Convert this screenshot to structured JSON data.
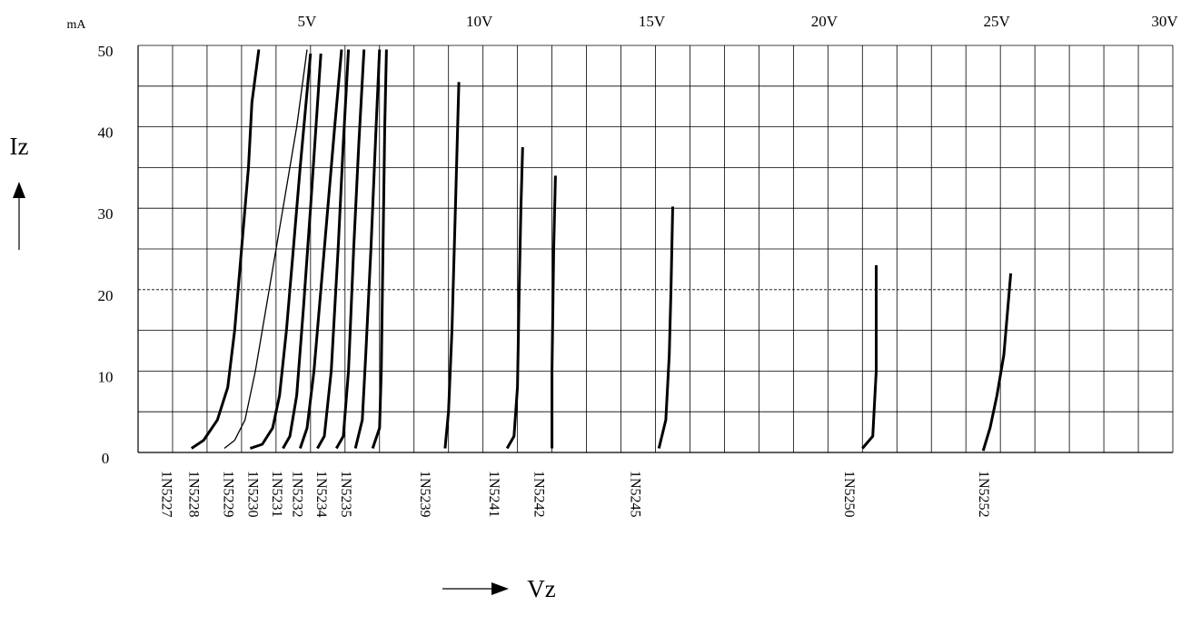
{
  "chart_data": {
    "type": "line",
    "title": "",
    "xlabel": "Vz",
    "ylabel": "Iz",
    "y_unit": "mA",
    "xlim": [
      0,
      30
    ],
    "ylim": [
      0,
      50
    ],
    "grid": true,
    "x_tick_labels": [
      "5V",
      "10V",
      "15V",
      "20V",
      "25V",
      "30V"
    ],
    "x_tick_values": [
      5,
      10,
      15,
      20,
      25,
      30
    ],
    "y_tick_labels": [
      "0",
      "10",
      "20",
      "30",
      "40",
      "50"
    ],
    "y_tick_values": [
      0,
      10,
      20,
      30,
      40,
      50
    ],
    "reference_line_y": 20,
    "part_labels": [
      {
        "text": "1N5227",
        "x": 0.8
      },
      {
        "text": "1N5228",
        "x": 1.6
      },
      {
        "text": "1N5229",
        "x": 2.6
      },
      {
        "text": "1N5230",
        "x": 3.3
      },
      {
        "text": "1N5231",
        "x": 4.0
      },
      {
        "text": "1N5232",
        "x": 4.6
      },
      {
        "text": "1N5234",
        "x": 5.3
      },
      {
        "text": "1N5235",
        "x": 6.0
      },
      {
        "text": "1N5239",
        "x": 8.3
      },
      {
        "text": "1N5241",
        "x": 10.3
      },
      {
        "text": "1N5242",
        "x": 11.6
      },
      {
        "text": "1N5245",
        "x": 14.4
      },
      {
        "text": "1N5250",
        "x": 20.6
      },
      {
        "text": "1N5252",
        "x": 24.5
      }
    ],
    "series": [
      {
        "style": "thick",
        "points": [
          [
            1.55,
            0.5
          ],
          [
            1.9,
            1.5
          ],
          [
            2.3,
            4
          ],
          [
            2.6,
            8
          ],
          [
            2.8,
            15
          ],
          [
            3.0,
            25
          ],
          [
            3.2,
            35
          ],
          [
            3.3,
            43
          ],
          [
            3.5,
            49.5
          ]
        ]
      },
      {
        "style": "thin",
        "points": [
          [
            2.5,
            0.5
          ],
          [
            2.8,
            1.5
          ],
          [
            3.1,
            4
          ],
          [
            3.4,
            10
          ],
          [
            3.8,
            20
          ],
          [
            4.2,
            30
          ],
          [
            4.6,
            40
          ],
          [
            4.9,
            49.5
          ]
        ]
      },
      {
        "style": "thick",
        "points": [
          [
            3.25,
            0.5
          ],
          [
            3.6,
            1
          ],
          [
            3.9,
            3
          ],
          [
            4.1,
            7
          ],
          [
            4.3,
            15
          ],
          [
            4.5,
            25
          ],
          [
            4.7,
            35
          ],
          [
            4.85,
            42
          ],
          [
            5.0,
            49
          ]
        ]
      },
      {
        "style": "thick",
        "points": [
          [
            4.2,
            0.5
          ],
          [
            4.4,
            2
          ],
          [
            4.6,
            7
          ],
          [
            4.8,
            18
          ],
          [
            5.0,
            30
          ],
          [
            5.3,
            49
          ]
        ]
      },
      {
        "style": "thick",
        "points": [
          [
            4.7,
            0.5
          ],
          [
            4.9,
            3
          ],
          [
            5.1,
            10
          ],
          [
            5.3,
            20
          ],
          [
            5.5,
            30
          ],
          [
            5.7,
            40
          ],
          [
            5.9,
            49.5
          ]
        ]
      },
      {
        "style": "thick",
        "points": [
          [
            5.2,
            0.5
          ],
          [
            5.4,
            2
          ],
          [
            5.6,
            10
          ],
          [
            5.8,
            25
          ],
          [
            5.95,
            38
          ],
          [
            6.1,
            49.5
          ]
        ]
      },
      {
        "style": "thick",
        "points": [
          [
            5.75,
            0.5
          ],
          [
            5.95,
            2
          ],
          [
            6.1,
            10
          ],
          [
            6.25,
            25
          ],
          [
            6.4,
            38
          ],
          [
            6.55,
            49.5
          ]
        ]
      },
      {
        "style": "thick",
        "points": [
          [
            6.3,
            0.5
          ],
          [
            6.5,
            4
          ],
          [
            6.6,
            12
          ],
          [
            6.75,
            25
          ],
          [
            6.9,
            40
          ],
          [
            7.0,
            49.5
          ]
        ]
      },
      {
        "style": "thick",
        "points": [
          [
            6.8,
            0.5
          ],
          [
            7.0,
            3
          ],
          [
            7.05,
            10
          ],
          [
            7.1,
            25
          ],
          [
            7.15,
            40
          ],
          [
            7.2,
            49.5
          ]
        ]
      },
      {
        "style": "thick",
        "points": [
          [
            8.9,
            0.5
          ],
          [
            9.0,
            5
          ],
          [
            9.1,
            15
          ],
          [
            9.2,
            30
          ],
          [
            9.3,
            45.5
          ]
        ]
      },
      {
        "style": "thick",
        "points": [
          [
            10.7,
            0.5
          ],
          [
            10.9,
            2
          ],
          [
            11.0,
            8
          ],
          [
            11.05,
            20
          ],
          [
            11.1,
            30
          ],
          [
            11.15,
            37.5
          ]
        ]
      },
      {
        "style": "thick",
        "points": [
          [
            12.0,
            0.5
          ],
          [
            12.0,
            10
          ],
          [
            12.05,
            25
          ],
          [
            12.1,
            34
          ]
        ]
      },
      {
        "style": "thick",
        "points": [
          [
            15.1,
            0.5
          ],
          [
            15.3,
            4
          ],
          [
            15.4,
            12
          ],
          [
            15.45,
            20
          ],
          [
            15.5,
            30.2
          ]
        ]
      },
      {
        "style": "thick",
        "points": [
          [
            21.0,
            0.5
          ],
          [
            21.3,
            2
          ],
          [
            21.4,
            10
          ],
          [
            21.4,
            18
          ],
          [
            21.4,
            23
          ]
        ]
      },
      {
        "style": "thick",
        "points": [
          [
            24.5,
            0.2
          ],
          [
            24.7,
            3
          ],
          [
            24.9,
            7
          ],
          [
            25.1,
            12
          ],
          [
            25.3,
            22
          ]
        ]
      }
    ]
  }
}
